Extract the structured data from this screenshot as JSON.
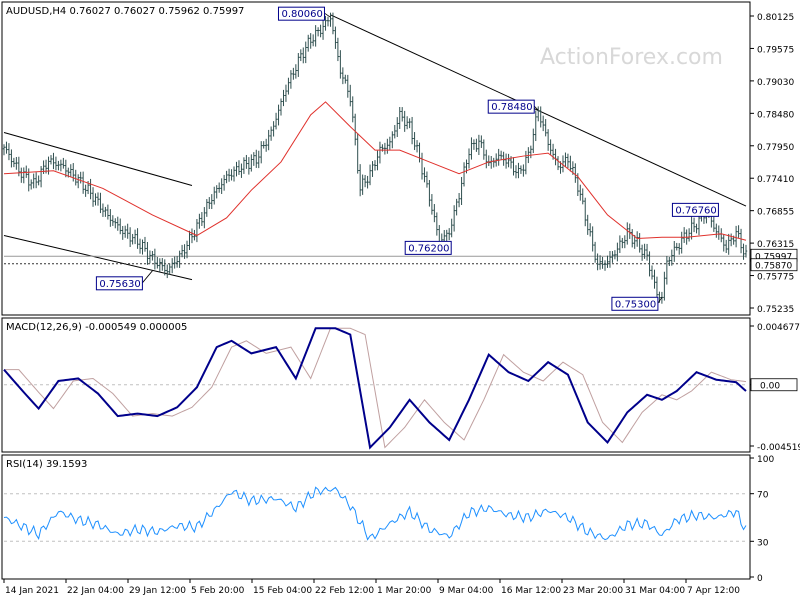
{
  "watermark": "ActionForex.com",
  "price_panel": {
    "header": "AUDUSD,H4  0.76027 0.76027 0.75962 0.75997",
    "y_ticks": [
      "0.80125",
      "0.79575",
      "0.79030",
      "0.78480",
      "0.77950",
      "0.77410",
      "0.76855",
      "0.76315",
      "0.75775",
      "0.75235"
    ],
    "current_price": "0.75997",
    "hline_label": "0.75870",
    "annotations": [
      "0.80060",
      "0.78480",
      "0.76200",
      "0.75630",
      "0.75300",
      "0.76760"
    ]
  },
  "macd_panel": {
    "header": "MACD(12,26,9) -0.000549 0.000005",
    "y_ticks": [
      "0.004677",
      "0.00",
      "-0.004519"
    ],
    "current_label": "0.00"
  },
  "rsi_panel": {
    "header": "RSI(14) 39.1593",
    "y_ticks": [
      "100",
      "70",
      "30",
      "0"
    ]
  },
  "x_ticks": [
    "14 Jan 2021",
    "22 Jan 04:00",
    "29 Jan 12:00",
    "5 Feb 20:00",
    "15 Feb 04:00",
    "22 Feb 12:00",
    "1 Mar 20:00",
    "9 Mar 04:00",
    "16 Mar 12:00",
    "23 Mar 20:00",
    "31 Mar 04:00",
    "7 Apr 12:00"
  ],
  "colors": {
    "candles": "#2f4f4f",
    "ma": "#e0312c",
    "trendline": "#000000",
    "macd": "#00008b",
    "macd_signal": "#c0a0a0",
    "rsi": "#1e90ff",
    "grid": "#c0c0c0"
  },
  "chart_data": {
    "type": "candlestick",
    "symbol": "AUDUSD",
    "timeframe": "H4",
    "ohlc_last": {
      "open": 0.76027,
      "high": 0.76027,
      "low": 0.75962,
      "close": 0.75997
    },
    "x_tick_labels": [
      "14 Jan 2021",
      "22 Jan 04:00",
      "29 Jan 12:00",
      "5 Feb 20:00",
      "15 Feb 04:00",
      "22 Feb 12:00",
      "1 Mar 20:00",
      "9 Mar 04:00",
      "16 Mar 12:00",
      "23 Mar 20:00",
      "31 Mar 04:00",
      "7 Apr 12:00"
    ],
    "price_ylim": [
      0.7505,
      0.8025
    ],
    "price_close_path": [
      [
        0,
        0.7785
      ],
      [
        6,
        0.7745
      ],
      [
        12,
        0.7722
      ],
      [
        18,
        0.7762
      ],
      [
        24,
        0.7752
      ],
      [
        30,
        0.773
      ],
      [
        36,
        0.7702
      ],
      [
        42,
        0.7668
      ],
      [
        48,
        0.7642
      ],
      [
        54,
        0.7625
      ],
      [
        60,
        0.7595
      ],
      [
        66,
        0.7575
      ],
      [
        72,
        0.7605
      ],
      [
        78,
        0.765
      ],
      [
        84,
        0.77
      ],
      [
        90,
        0.7735
      ],
      [
        96,
        0.7752
      ],
      [
        102,
        0.7765
      ],
      [
        108,
        0.781
      ],
      [
        114,
        0.7885
      ],
      [
        120,
        0.794
      ],
      [
        124,
        0.7968
      ],
      [
        128,
        0.7985
      ],
      [
        132,
        0.8006
      ],
      [
        136,
        0.7915
      ],
      [
        140,
        0.787
      ],
      [
        144,
        0.7715
      ],
      [
        148,
        0.774
      ],
      [
        152,
        0.778
      ],
      [
        156,
        0.7792
      ],
      [
        160,
        0.784
      ],
      [
        164,
        0.782
      ],
      [
        168,
        0.7765
      ],
      [
        172,
        0.77
      ],
      [
        176,
        0.7625
      ],
      [
        180,
        0.764
      ],
      [
        184,
        0.7705
      ],
      [
        188,
        0.778
      ],
      [
        192,
        0.7795
      ],
      [
        196,
        0.7755
      ],
      [
        200,
        0.777
      ],
      [
        204,
        0.776
      ],
      [
        208,
        0.774
      ],
      [
        212,
        0.777
      ],
      [
        216,
        0.7848
      ],
      [
        220,
        0.7792
      ],
      [
        224,
        0.7752
      ],
      [
        228,
        0.7765
      ],
      [
        232,
        0.772
      ],
      [
        236,
        0.765
      ],
      [
        240,
        0.7585
      ],
      [
        244,
        0.759
      ],
      [
        248,
        0.7612
      ],
      [
        252,
        0.764
      ],
      [
        256,
        0.7622
      ],
      [
        260,
        0.7598
      ],
      [
        264,
        0.7535
      ],
      [
        266,
        0.753
      ],
      [
        268,
        0.759
      ],
      [
        272,
        0.7615
      ],
      [
        276,
        0.7638
      ],
      [
        280,
        0.7655
      ],
      [
        284,
        0.7676
      ],
      [
        288,
        0.7642
      ],
      [
        292,
        0.7615
      ],
      [
        296,
        0.764
      ],
      [
        300,
        0.76
      ]
    ],
    "moving_average_path": [
      [
        0,
        0.774
      ],
      [
        20,
        0.7745
      ],
      [
        40,
        0.7715
      ],
      [
        60,
        0.767
      ],
      [
        78,
        0.7635
      ],
      [
        90,
        0.7665
      ],
      [
        100,
        0.7712
      ],
      [
        112,
        0.776
      ],
      [
        124,
        0.784
      ],
      [
        130,
        0.7862
      ],
      [
        140,
        0.782
      ],
      [
        150,
        0.778
      ],
      [
        160,
        0.778
      ],
      [
        172,
        0.776
      ],
      [
        184,
        0.774
      ],
      [
        196,
        0.776
      ],
      [
        210,
        0.777
      ],
      [
        220,
        0.7775
      ],
      [
        232,
        0.7735
      ],
      [
        244,
        0.767
      ],
      [
        256,
        0.763
      ],
      [
        266,
        0.7632
      ],
      [
        276,
        0.7632
      ],
      [
        290,
        0.7638
      ],
      [
        300,
        0.7627
      ]
    ],
    "trendline_upper": [
      [
        132,
        0.801
      ],
      [
        300,
        0.7685
      ]
    ],
    "channel_upper": [
      [
        0,
        0.781
      ],
      [
        76,
        0.772
      ]
    ],
    "channel_lower": [
      [
        0,
        0.7635
      ],
      [
        76,
        0.756
      ]
    ],
    "horizontal_level": 0.7587,
    "macd_ylim": [
      -0.0052,
      0.005
    ],
    "macd_path": [
      [
        0,
        0.0012
      ],
      [
        8,
        -0.0006
      ],
      [
        14,
        -0.0019
      ],
      [
        22,
        0.0003
      ],
      [
        30,
        0.0005
      ],
      [
        38,
        -0.0007
      ],
      [
        46,
        -0.0025
      ],
      [
        54,
        -0.0023
      ],
      [
        62,
        -0.0025
      ],
      [
        70,
        -0.0018
      ],
      [
        78,
        -0.0002
      ],
      [
        86,
        0.003
      ],
      [
        92,
        0.0035
      ],
      [
        100,
        0.0025
      ],
      [
        110,
        0.003
      ],
      [
        118,
        0.0005
      ],
      [
        126,
        0.0045
      ],
      [
        134,
        0.0045
      ],
      [
        140,
        0.004
      ],
      [
        148,
        -0.005
      ],
      [
        156,
        -0.0034
      ],
      [
        164,
        -0.0012
      ],
      [
        172,
        -0.003
      ],
      [
        180,
        -0.0044
      ],
      [
        188,
        -0.0012
      ],
      [
        196,
        0.0024
      ],
      [
        204,
        0.001
      ],
      [
        212,
        0.0003
      ],
      [
        220,
        0.0018
      ],
      [
        228,
        0.0008
      ],
      [
        236,
        -0.003
      ],
      [
        244,
        -0.0046
      ],
      [
        252,
        -0.0022
      ],
      [
        260,
        -0.0008
      ],
      [
        266,
        -0.0012
      ],
      [
        272,
        -0.0005
      ],
      [
        280,
        0.001
      ],
      [
        288,
        0.0004
      ],
      [
        296,
        0.0002
      ],
      [
        300,
        -0.0005
      ]
    ],
    "rsi_ylim": [
      0,
      100
    ],
    "rsi_levels": [
      70,
      30
    ],
    "rsi_path": [
      [
        0,
        50
      ],
      [
        8,
        42
      ],
      [
        14,
        36
      ],
      [
        22,
        55
      ],
      [
        30,
        48
      ],
      [
        38,
        44
      ],
      [
        46,
        36
      ],
      [
        54,
        40
      ],
      [
        62,
        38
      ],
      [
        70,
        43
      ],
      [
        78,
        42
      ],
      [
        86,
        58
      ],
      [
        92,
        72
      ],
      [
        100,
        64
      ],
      [
        110,
        66
      ],
      [
        118,
        58
      ],
      [
        126,
        72
      ],
      [
        134,
        74
      ],
      [
        140,
        60
      ],
      [
        148,
        32
      ],
      [
        156,
        45
      ],
      [
        164,
        55
      ],
      [
        172,
        40
      ],
      [
        180,
        34
      ],
      [
        188,
        54
      ],
      [
        196,
        58
      ],
      [
        204,
        52
      ],
      [
        212,
        50
      ],
      [
        220,
        56
      ],
      [
        228,
        50
      ],
      [
        236,
        38
      ],
      [
        244,
        32
      ],
      [
        252,
        44
      ],
      [
        260,
        45
      ],
      [
        266,
        35
      ],
      [
        272,
        48
      ],
      [
        280,
        52
      ],
      [
        288,
        50
      ],
      [
        296,
        55
      ],
      [
        300,
        39
      ]
    ]
  }
}
